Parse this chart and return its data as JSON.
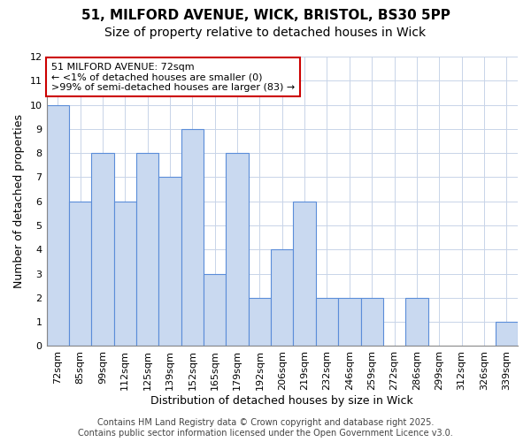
{
  "title_line1": "51, MILFORD AVENUE, WICK, BRISTOL, BS30 5PP",
  "title_line2": "Size of property relative to detached houses in Wick",
  "xlabel": "Distribution of detached houses by size in Wick",
  "ylabel": "Number of detached properties",
  "categories": [
    "72sqm",
    "85sqm",
    "99sqm",
    "112sqm",
    "125sqm",
    "139sqm",
    "152sqm",
    "165sqm",
    "179sqm",
    "192sqm",
    "206sqm",
    "219sqm",
    "232sqm",
    "246sqm",
    "259sqm",
    "272sqm",
    "286sqm",
    "299sqm",
    "312sqm",
    "326sqm",
    "339sqm"
  ],
  "values": [
    10,
    6,
    8,
    6,
    8,
    7,
    9,
    3,
    8,
    2,
    4,
    6,
    2,
    2,
    2,
    0,
    2,
    0,
    0,
    0,
    1
  ],
  "bar_color": "#c9d9f0",
  "bar_edge_color": "#5b8dd9",
  "annotation_box_text": "51 MILFORD AVENUE: 72sqm\n← <1% of detached houses are smaller (0)\n>99% of semi-detached houses are larger (83) →",
  "annotation_box_color": "#ffffff",
  "annotation_box_edge_color": "#cc0000",
  "ylim": [
    0,
    12
  ],
  "yticks": [
    0,
    1,
    2,
    3,
    4,
    5,
    6,
    7,
    8,
    9,
    10,
    11,
    12
  ],
  "grid_color": "#c8d4e8",
  "background_color": "#ffffff",
  "plot_bg_color": "#ffffff",
  "footer_text": "Contains HM Land Registry data © Crown copyright and database right 2025.\nContains public sector information licensed under the Open Government Licence v3.0.",
  "title_fontsize": 11,
  "subtitle_fontsize": 10,
  "axis_label_fontsize": 9,
  "tick_fontsize": 8,
  "annotation_fontsize": 8,
  "footer_fontsize": 7
}
